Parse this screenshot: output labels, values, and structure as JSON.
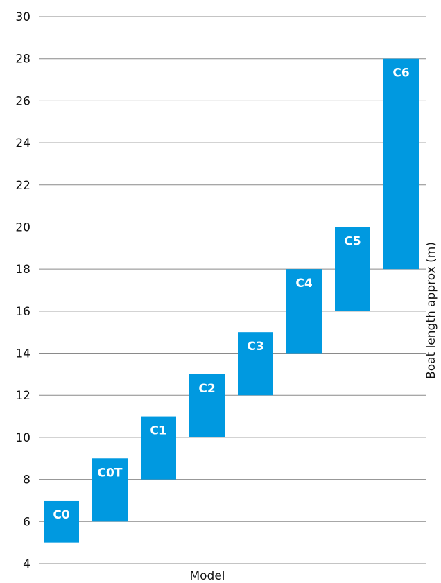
{
  "chart_data": {
    "type": "bar",
    "subtype": "floating-range",
    "title": "",
    "xlabel": "Model",
    "ylabel": "Boat length approx (m)",
    "ylim": [
      4,
      30
    ],
    "yticks": [
      4,
      6,
      8,
      10,
      12,
      14,
      16,
      18,
      20,
      22,
      24,
      26,
      28,
      30
    ],
    "grid": true,
    "legend": "none",
    "bar_color": "#0099e0",
    "label_color": "#ffffff",
    "categories": [
      "C0",
      "C0T",
      "C1",
      "C2",
      "C3",
      "C4",
      "C5",
      "C6"
    ],
    "ranges": [
      {
        "label": "C0",
        "low": 5,
        "high": 7
      },
      {
        "label": "C0T",
        "low": 6,
        "high": 9
      },
      {
        "label": "C1",
        "low": 8,
        "high": 11
      },
      {
        "label": "C2",
        "low": 10,
        "high": 13
      },
      {
        "label": "C3",
        "low": 12,
        "high": 15
      },
      {
        "label": "C4",
        "low": 14,
        "high": 18
      },
      {
        "label": "C5",
        "low": 16,
        "high": 20
      },
      {
        "label": "C6",
        "low": 18,
        "high": 28
      }
    ]
  }
}
